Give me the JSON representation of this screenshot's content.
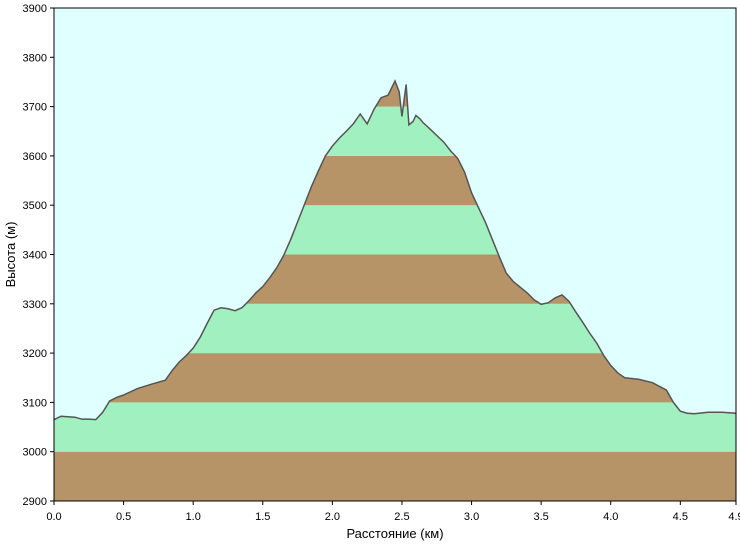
{
  "chart_data": {
    "type": "area",
    "xlabel": "Расстояние   (км)",
    "ylabel": "Высота (м)",
    "xlim": [
      0.0,
      4.9
    ],
    "ylim": [
      2900,
      3900
    ],
    "x_ticks": [
      "0.0",
      "0.5",
      "1.0",
      "1.5",
      "2.0",
      "2.5",
      "3.0",
      "3.5",
      "4.0",
      "4.5",
      "4.9"
    ],
    "y_ticks": [
      "2900",
      "3000",
      "3100",
      "3200",
      "3300",
      "3400",
      "3500",
      "3600",
      "3700",
      "3800",
      "3900"
    ],
    "band_step": 100,
    "colors": {
      "background": "#e0ffff",
      "band_brown": "#b79468",
      "band_green": "#a0f0c0",
      "profile_line": "#555555"
    },
    "series": [
      {
        "x": [
          0.0,
          0.05,
          0.15,
          0.2,
          0.25,
          0.3,
          0.35,
          0.4,
          0.45,
          0.5,
          0.6,
          0.7,
          0.8,
          0.85,
          0.9,
          0.95,
          1.0,
          1.05,
          1.1,
          1.15,
          1.2,
          1.25,
          1.3,
          1.35,
          1.4,
          1.45,
          1.5,
          1.55,
          1.6,
          1.65,
          1.7,
          1.75,
          1.8,
          1.85,
          1.9,
          1.95,
          2.0,
          2.05,
          2.1,
          2.15,
          2.2,
          2.25,
          2.3,
          2.35,
          2.4,
          2.45,
          2.48,
          2.5,
          2.53,
          2.55,
          2.58,
          2.6,
          2.63,
          2.65,
          2.7,
          2.8,
          2.85,
          2.9,
          2.95,
          3.0,
          3.05,
          3.1,
          3.15,
          3.2,
          3.25,
          3.3,
          3.4,
          3.45,
          3.5,
          3.55,
          3.6,
          3.65,
          3.7,
          3.75,
          3.8,
          3.85,
          3.9,
          3.95,
          4.0,
          4.05,
          4.1,
          4.2,
          4.3,
          4.4,
          4.45,
          4.5,
          4.55,
          4.6,
          4.7,
          4.8,
          4.9
        ],
        "y": [
          3065,
          3072,
          3070,
          3066,
          3066,
          3065,
          3080,
          3103,
          3110,
          3115,
          3128,
          3137,
          3145,
          3165,
          3182,
          3195,
          3210,
          3232,
          3260,
          3287,
          3292,
          3290,
          3286,
          3292,
          3306,
          3322,
          3335,
          3353,
          3373,
          3398,
          3430,
          3466,
          3502,
          3538,
          3570,
          3600,
          3620,
          3636,
          3650,
          3665,
          3685,
          3665,
          3695,
          3718,
          3723,
          3752,
          3730,
          3680,
          3745,
          3663,
          3670,
          3682,
          3675,
          3668,
          3655,
          3628,
          3610,
          3595,
          3567,
          3525,
          3495,
          3465,
          3430,
          3395,
          3362,
          3345,
          3322,
          3308,
          3299,
          3302,
          3312,
          3318,
          3305,
          3283,
          3262,
          3240,
          3220,
          3195,
          3175,
          3160,
          3150,
          3147,
          3140,
          3125,
          3100,
          3082,
          3078,
          3077,
          3080,
          3080,
          3078
        ]
      }
    ]
  }
}
